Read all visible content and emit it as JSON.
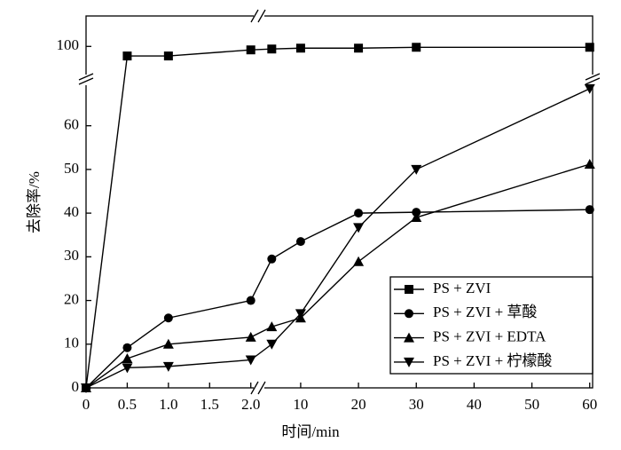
{
  "chart_data": {
    "type": "line",
    "x_label": "时间/min",
    "y_label": "去除率/%",
    "x": [
      0,
      0.5,
      1.0,
      2.0,
      5,
      10,
      20,
      30,
      60
    ],
    "x_segments": [
      {
        "xlim": [
          0,
          2.1
        ],
        "xticks": [
          0,
          0.5,
          {
            "value": 1,
            "label": "1.0"
          },
          1.5,
          {
            "value": 2,
            "label": "2.0"
          }
        ]
      },
      {
        "xlim": [
          2.8,
          60.5
        ],
        "xticks": [
          10,
          20,
          30,
          40,
          50,
          60
        ]
      }
    ],
    "y_segments": [
      {
        "ylim": [
          0,
          70.5
        ],
        "yticks": [
          0,
          10,
          20,
          30,
          40,
          50,
          60
        ]
      },
      {
        "ylim": [
          92.3,
          107
        ],
        "yticks": [
          100
        ]
      }
    ],
    "legend": "lower right",
    "series": [
      {
        "name": "PS + ZVI",
        "color": "#000000",
        "marker": "square",
        "values": [
          0,
          97.8,
          97.8,
          99.2,
          99.4,
          99.6,
          99.6,
          99.8,
          99.8
        ]
      },
      {
        "name": "PS + ZVI + 草酸",
        "color": "#000000",
        "marker": "circle",
        "values": [
          0,
          9.2,
          16,
          20,
          29.5,
          33.5,
          40,
          40.2,
          40.8
        ]
      },
      {
        "name": "PS + ZVI + EDTA",
        "color": "#000000",
        "marker": "triangle-up",
        "values": [
          0,
          6.7,
          10,
          11.6,
          14,
          16,
          28.9,
          39,
          51.2
        ]
      },
      {
        "name": "PS + ZVI + 柠檬酸",
        "color": "#000000",
        "marker": "triangle-down",
        "values": [
          0,
          4.6,
          4.9,
          6.4,
          10,
          17,
          36.7,
          50,
          68.5
        ]
      }
    ]
  }
}
